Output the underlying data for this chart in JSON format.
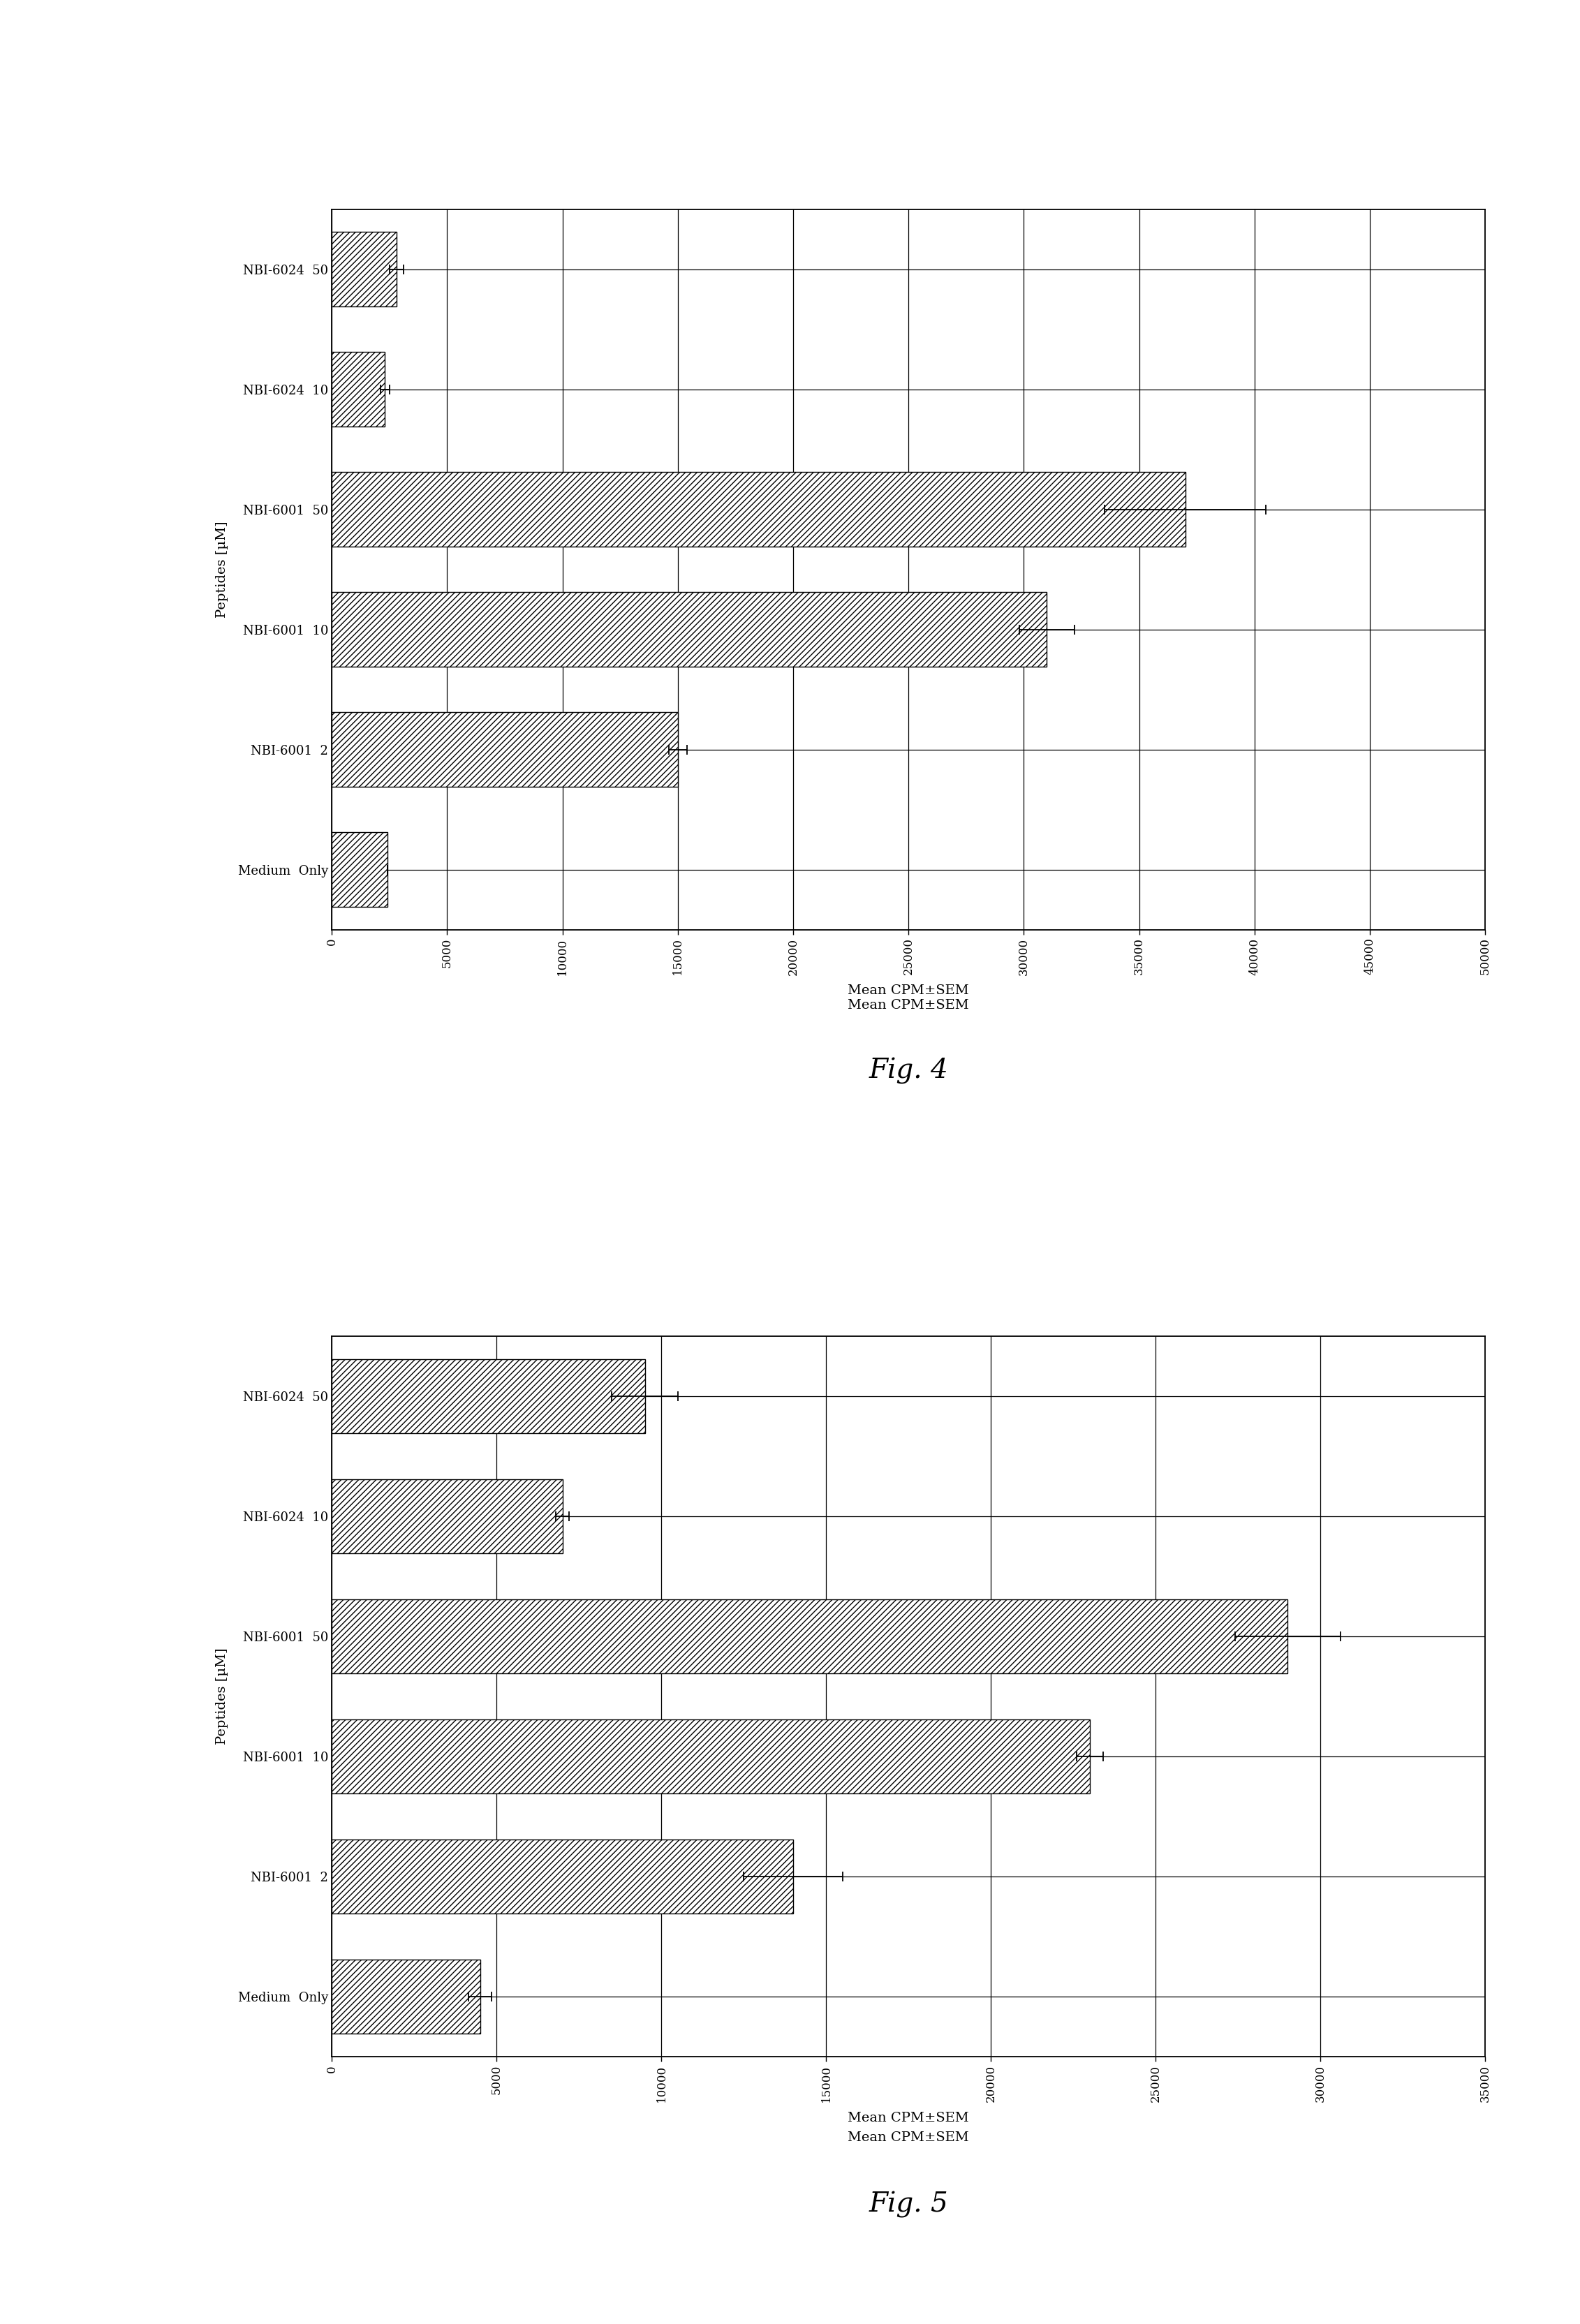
{
  "fig4": {
    "title": "Fig. 4",
    "xlabel": "Mean CPM±SEM",
    "ylabel": "Peptides [µM]",
    "categories": [
      "Medium  Only",
      "NBI-6001  2",
      "NBI-6001  10",
      "NBI-6001  50",
      "NBI-6024  10",
      "NBI-6024  50"
    ],
    "values": [
      2400,
      15000,
      31000,
      37000,
      2300,
      2800
    ],
    "errors": [
      0,
      400,
      1200,
      3500,
      200,
      300
    ],
    "xlim": [
      0,
      50000
    ],
    "xticks": [
      0,
      5000,
      10000,
      15000,
      20000,
      25000,
      30000,
      35000,
      40000,
      45000,
      50000
    ],
    "tick_labels": [
      "0",
      "5000",
      "10000",
      "15000",
      "20000",
      "25000",
      "30000",
      "35000",
      "40000",
      "45000",
      "50000"
    ]
  },
  "fig5": {
    "title": "Fig. 5",
    "xlabel": "Mean CPM±SEM",
    "ylabel": "Peptides [µM]",
    "categories": [
      "Medium  Only",
      "NBI-6001  2",
      "NBI-6001  10",
      "NBI-6001  50",
      "NBI-6024  10",
      "NBI-6024  50"
    ],
    "values": [
      4500,
      14000,
      23000,
      29000,
      7000,
      9500
    ],
    "errors": [
      350,
      1500,
      400,
      1600,
      200,
      1000
    ],
    "xlim": [
      0,
      35000
    ],
    "xticks": [
      0,
      5000,
      10000,
      15000,
      20000,
      25000,
      30000,
      35000
    ],
    "tick_labels": [
      "0",
      "5000",
      "10000",
      "15000",
      "20000",
      "25000",
      "30000",
      "35000"
    ]
  },
  "hatch": "////",
  "bar_facecolor": "white",
  "bar_edgecolor": "black",
  "background_color": "white",
  "bar_linewidth": 1.0,
  "grid_linewidth": 0.9,
  "spine_linewidth": 1.3,
  "bar_height": 0.62,
  "xlabel_fontsize": 14,
  "ylabel_fontsize": 14,
  "tick_fontsize": 12,
  "fig_label_fontsize": 28,
  "xlabel_between_fontsize": 14,
  "ytick_fontsize": 13
}
